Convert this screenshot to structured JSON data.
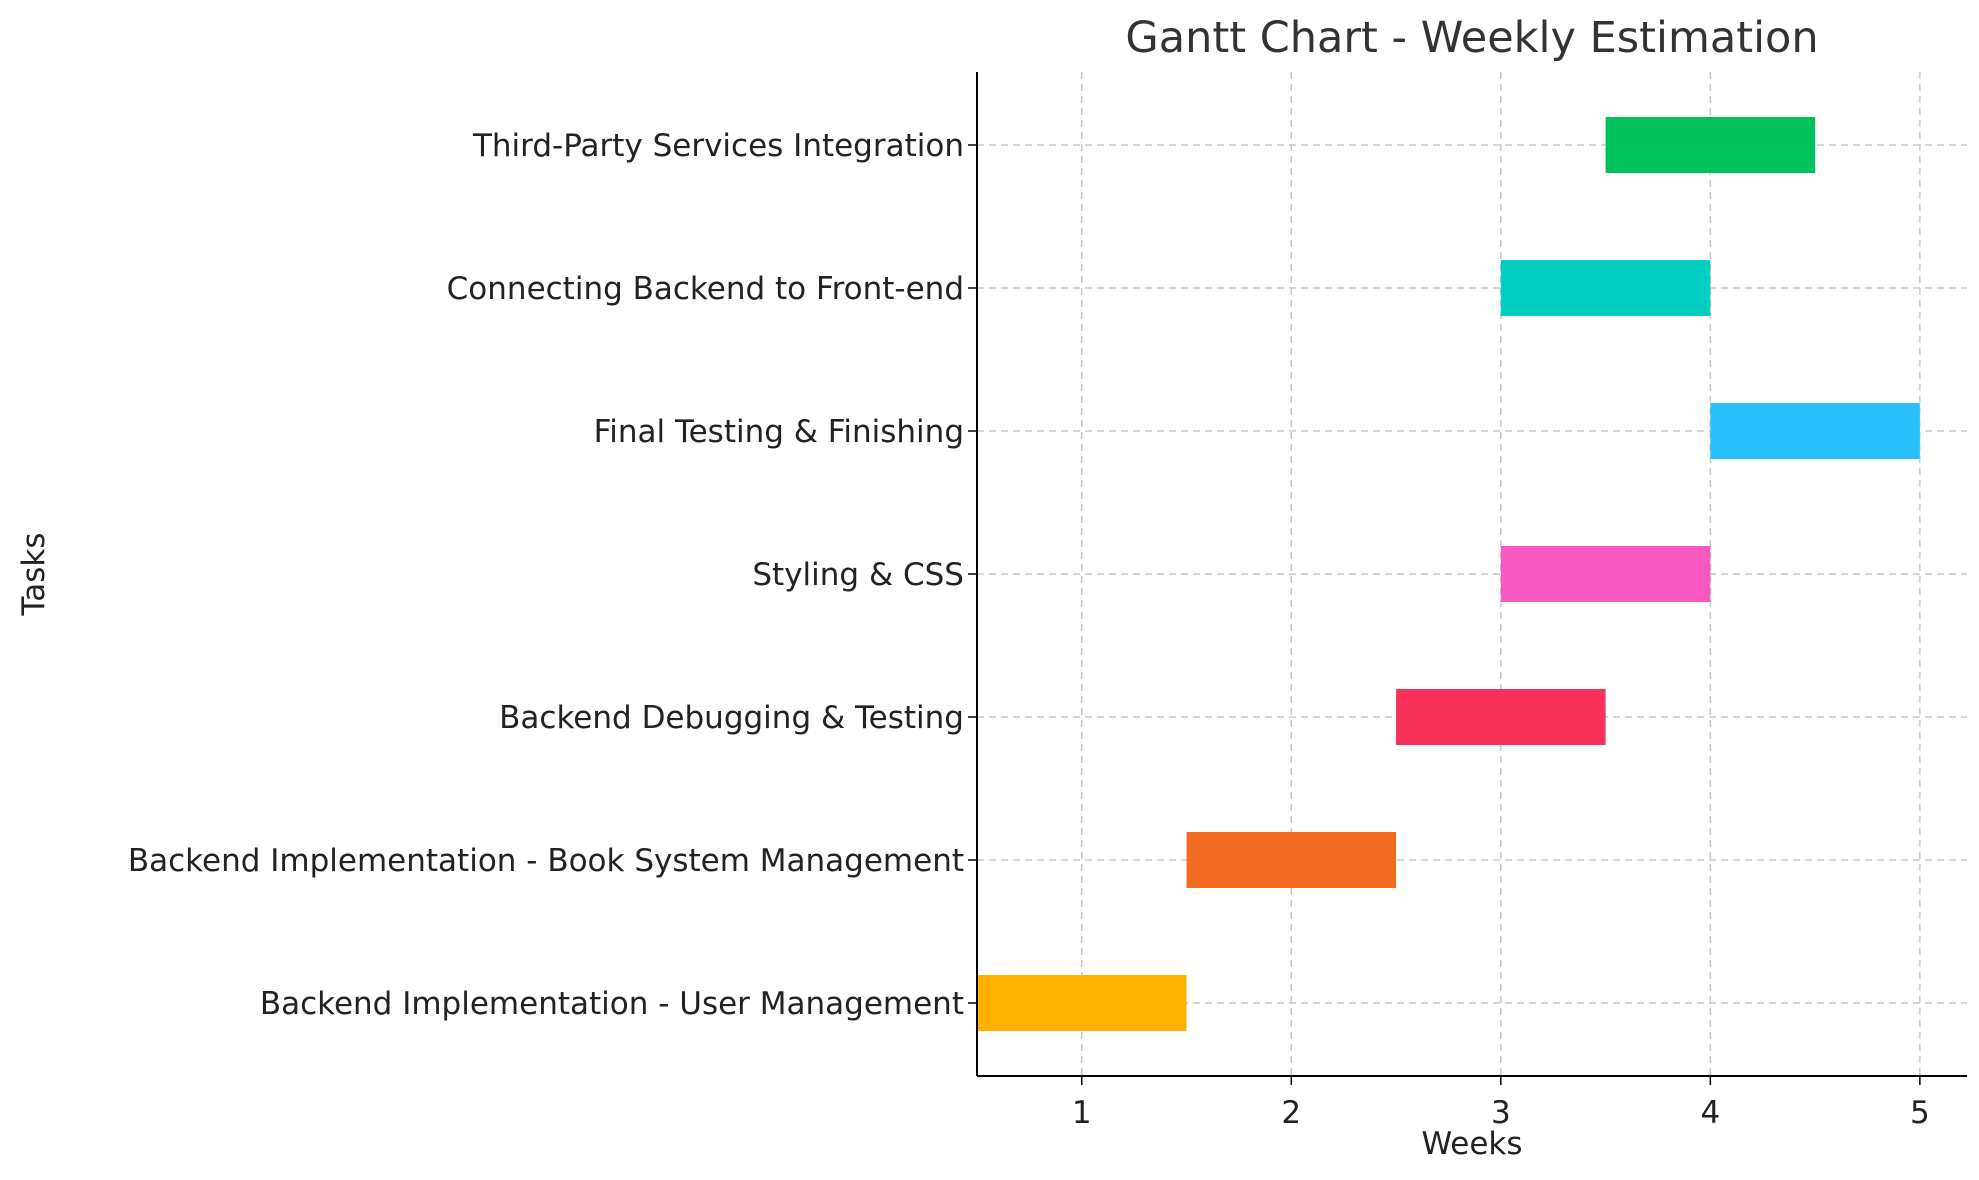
{
  "chart_data": {
    "type": "bar",
    "orientation": "horizontal",
    "title": "Gantt Chart - Weekly Estimation",
    "xlabel": "Weeks",
    "ylabel": "Tasks",
    "xlim": [
      0.5,
      5.225
    ],
    "xticks": [
      "1",
      "2",
      "3",
      "4",
      "5"
    ],
    "grid": true,
    "tasks": [
      {
        "label": "Backend Implementation - User Management",
        "start": 0.5,
        "end": 1.5,
        "color": "#FFB000"
      },
      {
        "label": "Backend Implementation - Book System Management",
        "start": 1.5,
        "end": 2.5,
        "color": "#F36B21"
      },
      {
        "label": "Backend Debugging & Testing",
        "start": 2.5,
        "end": 3.5,
        "color": "#F73159"
      },
      {
        "label": "Styling & CSS",
        "start": 3.0,
        "end": 4.0,
        "color": "#F759C0"
      },
      {
        "label": "Final Testing & Finishing",
        "start": 4.0,
        "end": 5.0,
        "color": "#29BFFA"
      },
      {
        "label": "Connecting Backend to Front-end",
        "start": 3.0,
        "end": 4.0,
        "color": "#00CEC0"
      },
      {
        "label": "Third-Party Services Integration",
        "start": 3.5,
        "end": 4.5,
        "color": "#00C25A"
      }
    ]
  }
}
